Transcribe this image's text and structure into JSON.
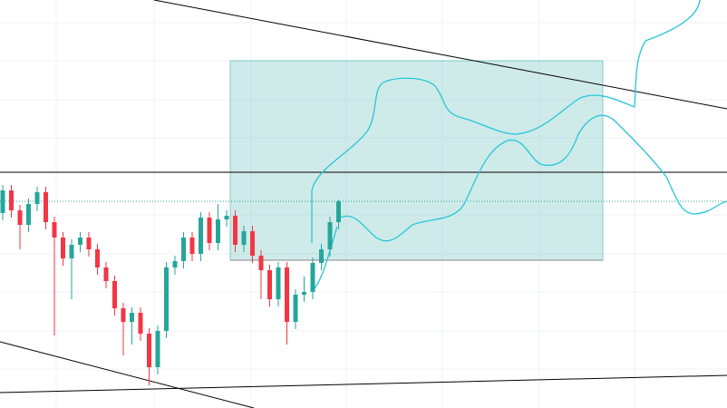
{
  "chart_data": {
    "type": "candlestick",
    "ylim": [
      0,
      450
    ],
    "up_color": "#26a69a",
    "down_color": "#f23645",
    "open": [
      215,
      240,
      218,
      202,
      225,
      238,
      205,
      188,
      165,
      180,
      188,
      175,
      155,
      140,
      110,
      95,
      105,
      82,
      45,
      85,
      155,
      162,
      188,
      170,
      210,
      182,
      208,
      212,
      180,
      195,
      168,
      152,
      120,
      155,
      95,
      125,
      128,
      160,
      175,
      205
    ],
    "high": [
      246,
      246,
      224,
      231,
      244,
      244,
      211,
      194,
      186,
      194,
      194,
      181,
      161,
      146,
      116,
      111,
      111,
      88,
      91,
      161,
      168,
      194,
      194,
      216,
      216,
      225,
      218,
      218,
      201,
      201,
      174,
      158,
      161,
      161,
      131,
      145,
      166,
      181,
      211,
      230
    ],
    "low": [
      207,
      210,
      175,
      194,
      217,
      197,
      80,
      157,
      120,
      172,
      167,
      147,
      132,
      102,
      58,
      70,
      74,
      25,
      37,
      77,
      147,
      154,
      162,
      162,
      174,
      174,
      200,
      172,
      172,
      160,
      120,
      112,
      112,
      70,
      87,
      117,
      120,
      152,
      167,
      197
    ],
    "close": [
      240,
      218,
      202,
      225,
      238,
      205,
      188,
      165,
      180,
      188,
      175,
      155,
      140,
      110,
      95,
      105,
      82,
      45,
      85,
      155,
      162,
      188,
      170,
      210,
      182,
      208,
      212,
      180,
      195,
      168,
      152,
      120,
      155,
      95,
      125,
      128,
      160,
      175,
      205,
      228
    ]
  }
}
